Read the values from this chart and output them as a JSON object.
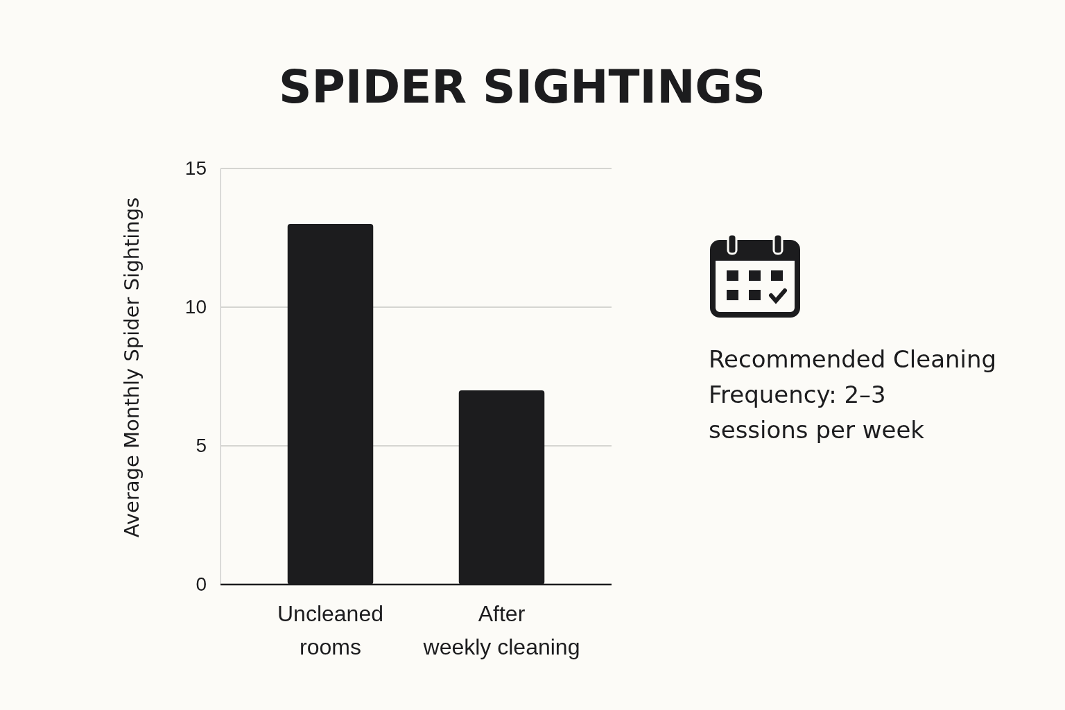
{
  "chart_data": {
    "type": "bar",
    "title": "SPIDER SIGHTINGS",
    "ylabel": "Average Monthly Spider Sightings",
    "categories": [
      "Uncleaned rooms",
      "After weekly cleaning"
    ],
    "values": [
      13,
      7
    ],
    "color": "#1c1c1e",
    "ylim": [
      0,
      15
    ],
    "yticks": [
      0,
      5,
      10,
      15
    ],
    "grid": true,
    "annotations": [
      "Recommended Cleaning Frequency: 2–3 sessions per week"
    ]
  }
}
